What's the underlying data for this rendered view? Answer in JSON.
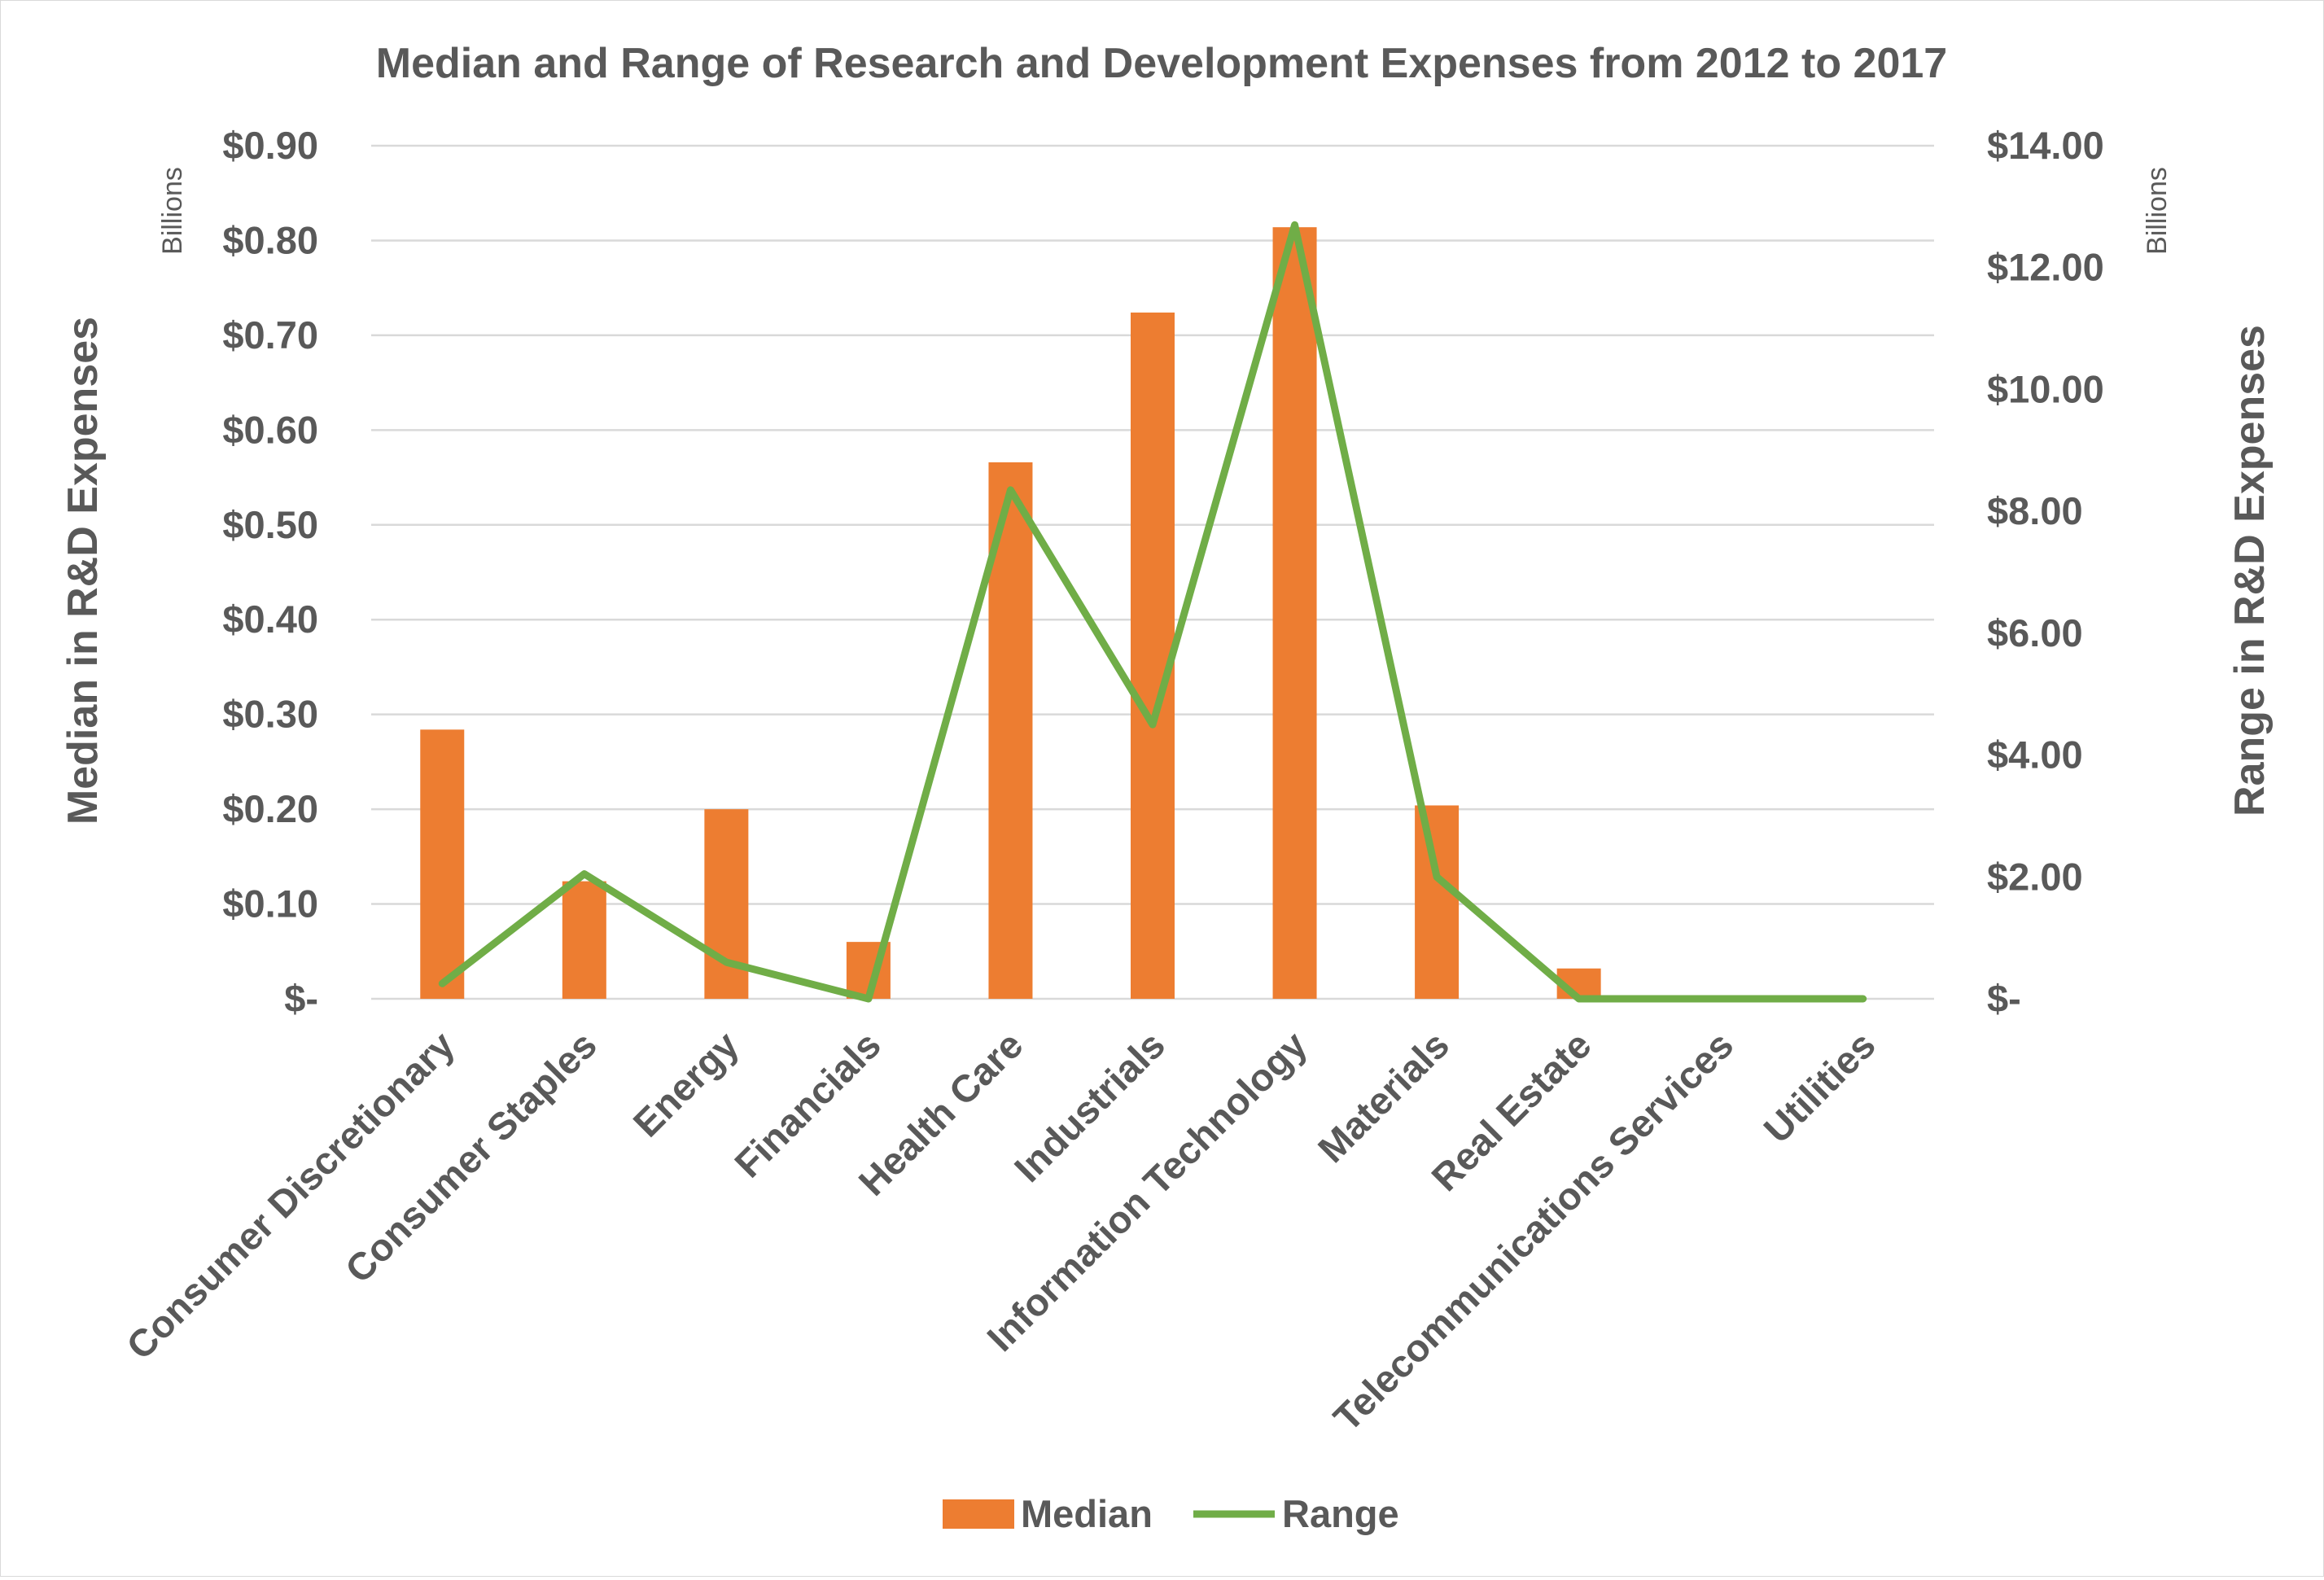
{
  "chart_data": {
    "type": "bar",
    "title": "Median and Range of Research and Development Expenses from 2012 to 2017",
    "categories": [
      "Consumer Discretionary",
      "Consumer Staples",
      "Energy",
      "Financials",
      "Health Care",
      "Industrials",
      "Information Technology",
      "Materials",
      "Real Estate",
      "Telecommunications Services",
      "Utilities"
    ],
    "series": [
      {
        "name": "Median",
        "type": "bar",
        "axis": "left",
        "color": "#ED7D31",
        "values": [
          0.284,
          0.124,
          0.2,
          0.06,
          0.566,
          0.724,
          0.814,
          0.204,
          0.032,
          0.0,
          0.0
        ]
      },
      {
        "name": "Range",
        "type": "line",
        "axis": "right",
        "color": "#70AD47",
        "values": [
          0.25,
          2.05,
          0.6,
          0.0,
          8.35,
          4.5,
          12.7,
          2.0,
          0.0,
          0.0,
          0.0
        ]
      }
    ],
    "y_left": {
      "label": "Median in R&D Expenses",
      "unit": "Billions",
      "ylim": [
        0,
        0.9
      ],
      "ticks": [
        0,
        0.1,
        0.2,
        0.3,
        0.4,
        0.5,
        0.6,
        0.7,
        0.8,
        0.9
      ],
      "tick_labels": [
        "$-",
        "$0.10",
        "$0.20",
        "$0.30",
        "$0.40",
        "$0.50",
        "$0.60",
        "$0.70",
        "$0.80",
        "$0.90"
      ]
    },
    "y_right": {
      "label": "Range in R&D Expenses",
      "unit": "Billions",
      "ylim": [
        0,
        14
      ],
      "ticks": [
        0,
        2,
        4,
        6,
        8,
        10,
        12,
        14
      ],
      "tick_labels": [
        "$-",
        "$2.00",
        "$4.00",
        "$6.00",
        "$8.00",
        "$10.00",
        "$12.00",
        "$14.00"
      ]
    },
    "grid": "horizontal",
    "legend": {
      "position": "bottom",
      "entries": [
        "Median",
        "Range"
      ]
    }
  }
}
